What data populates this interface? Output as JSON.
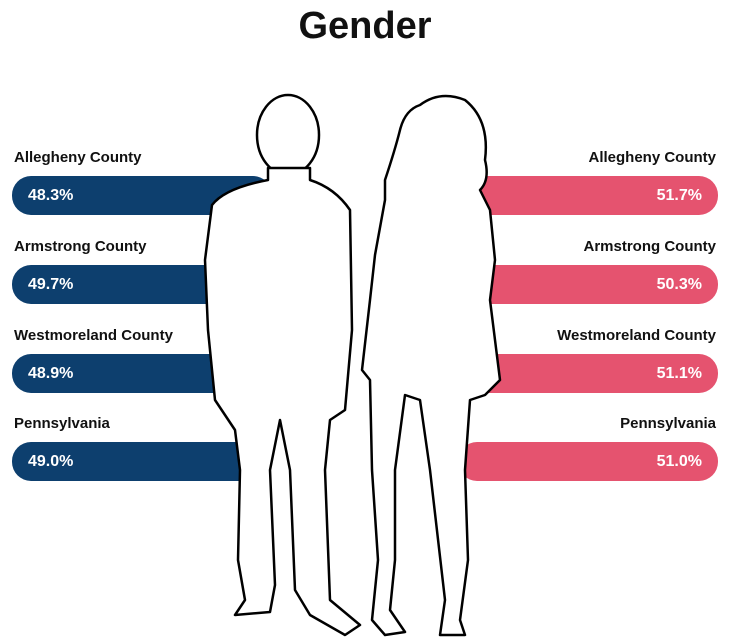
{
  "title": "Gender",
  "male": [
    {
      "label": "Allegheny County",
      "value": "48.3%"
    },
    {
      "label": "Armstrong County",
      "value": "49.7%"
    },
    {
      "label": "Westmoreland County",
      "value": "48.9%"
    },
    {
      "label": "Pennsylvania",
      "value": "49.0%"
    }
  ],
  "female": [
    {
      "label": "Allegheny County",
      "value": "51.7%"
    },
    {
      "label": "Armstrong County",
      "value": "50.3%"
    },
    {
      "label": "Westmoreland County",
      "value": "51.1%"
    },
    {
      "label": "Pennsylvania",
      "value": "51.0%"
    }
  ]
}
